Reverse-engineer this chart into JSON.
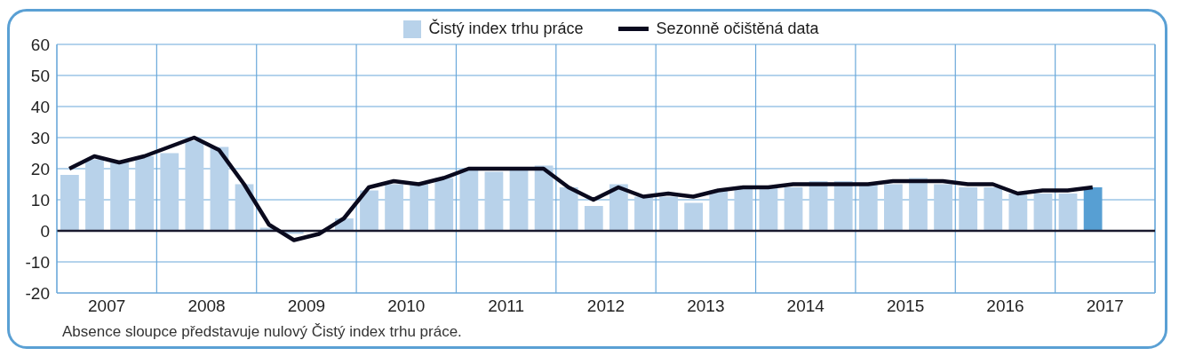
{
  "chart_data": {
    "type": "bar",
    "x": [
      2007.125,
      2007.375,
      2007.625,
      2007.875,
      2008.125,
      2008.375,
      2008.625,
      2008.875,
      2009.125,
      2009.375,
      2009.625,
      2009.875,
      2010.125,
      2010.375,
      2010.625,
      2010.875,
      2011.125,
      2011.375,
      2011.625,
      2011.875,
      2012.125,
      2012.375,
      2012.625,
      2012.875,
      2013.125,
      2013.375,
      2013.625,
      2013.875,
      2014.125,
      2014.375,
      2014.625,
      2014.875,
      2015.125,
      2015.375,
      2015.625,
      2015.875,
      2016.125,
      2016.375,
      2016.625,
      2016.875,
      2017.125,
      2017.375
    ],
    "series": [
      {
        "name": "Čistý index trhu práce",
        "color": "#b8d2ea",
        "colors": [
          "#b8d2ea",
          "#b8d2ea",
          "#b8d2ea",
          "#b8d2ea",
          "#b8d2ea",
          "#b8d2ea",
          "#b8d2ea",
          "#b8d2ea",
          "#b8d2ea",
          "#b8d2ea",
          "#b8d2ea",
          "#b8d2ea",
          "#b8d2ea",
          "#b8d2ea",
          "#b8d2ea",
          "#b8d2ea",
          "#b8d2ea",
          "#b8d2ea",
          "#b8d2ea",
          "#b8d2ea",
          "#b8d2ea",
          "#b8d2ea",
          "#b8d2ea",
          "#b8d2ea",
          "#b8d2ea",
          "#b8d2ea",
          "#b8d2ea",
          "#b8d2ea",
          "#b8d2ea",
          "#b8d2ea",
          "#b8d2ea",
          "#b8d2ea",
          "#b8d2ea",
          "#b8d2ea",
          "#b8d2ea",
          "#b8d2ea",
          "#b8d2ea",
          "#b8d2ea",
          "#b8d2ea",
          "#b8d2ea",
          "#b8d2ea",
          "#579fd3"
        ],
        "values": [
          18,
          23,
          22,
          24,
          25,
          29,
          27,
          15,
          1,
          -1,
          0,
          4,
          13,
          15,
          15,
          17,
          20,
          19,
          20,
          21,
          14,
          8,
          15,
          11,
          11,
          9,
          13,
          14,
          14,
          14,
          16,
          16,
          15,
          15,
          17,
          15,
          14,
          14,
          12,
          12,
          12,
          14
        ]
      },
      {
        "name": "Sezonně očištěná data",
        "type": "line",
        "color": "#0a0a1e",
        "values": [
          20,
          24,
          22,
          24,
          27,
          30,
          26,
          15,
          2,
          -3,
          -1,
          4,
          14,
          16,
          15,
          17,
          20,
          20,
          20,
          20,
          14,
          10,
          14,
          11,
          12,
          11,
          13,
          14,
          14,
          15,
          15,
          15,
          15,
          16,
          16,
          16,
          15,
          15,
          12,
          13,
          13,
          14
        ]
      }
    ],
    "xlim": [
      2007,
      2018
    ],
    "xticks": [
      {
        "value": 2007,
        "label": null
      },
      {
        "value": 2007.5,
        "label": "2007"
      },
      {
        "value": 2008,
        "label": null
      },
      {
        "value": 2008.5,
        "label": "2008"
      },
      {
        "value": 2009,
        "label": null
      },
      {
        "value": 2009.5,
        "label": "2009"
      },
      {
        "value": 2010,
        "label": null
      },
      {
        "value": 2010.5,
        "label": "2010"
      },
      {
        "value": 2011,
        "label": null
      },
      {
        "value": 2011.5,
        "label": "2011"
      },
      {
        "value": 2012,
        "label": null
      },
      {
        "value": 2012.5,
        "label": "2012"
      },
      {
        "value": 2013,
        "label": null
      },
      {
        "value": 2013.5,
        "label": "2013"
      },
      {
        "value": 2014,
        "label": null
      },
      {
        "value": 2014.5,
        "label": "2014"
      },
      {
        "value": 2015,
        "label": null
      },
      {
        "value": 2015.5,
        "label": "2015"
      },
      {
        "value": 2016,
        "label": null
      },
      {
        "value": 2016.5,
        "label": "2016"
      },
      {
        "value": 2017,
        "label": null
      },
      {
        "value": 2017.5,
        "label": "2017"
      },
      {
        "value": 2018,
        "label": null
      }
    ],
    "ylim": [
      -20,
      60
    ],
    "yticks": [
      -20,
      -10,
      0,
      10,
      20,
      30,
      40,
      50,
      60
    ],
    "grid": true,
    "legend": "top",
    "ref_lines": [
      {
        "axis": "y",
        "value": 0,
        "color": "#1a1a2e"
      }
    ],
    "annotations": [
      "Absence sloupce představuje nulový Čistý index trhu práce."
    ]
  }
}
